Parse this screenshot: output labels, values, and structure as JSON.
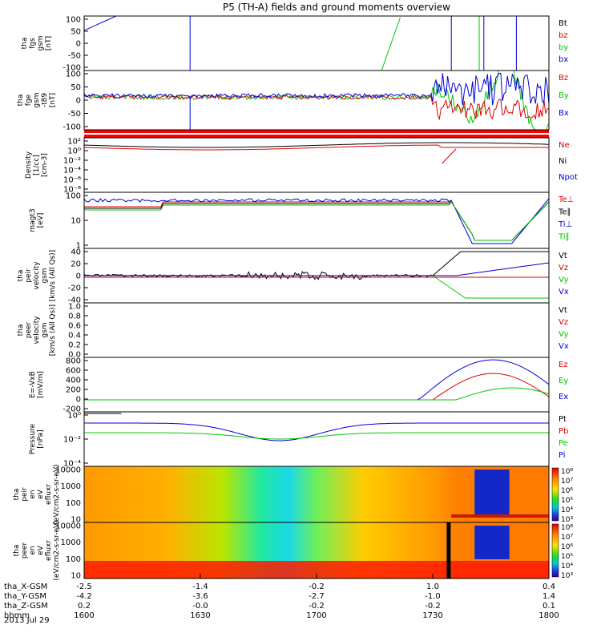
{
  "title": "P5 (TH-A) fields and ground moments overview",
  "date_label": "2013 Jul 29",
  "hhmm_label": "hhmm",
  "colors": {
    "black": "#000000",
    "red": "#e00000",
    "green": "#00c800",
    "blue": "#0000dc"
  },
  "chart_data": [
    {
      "type": "line",
      "ylabel": [
        "tha",
        "fgs",
        "gsm",
        "[nT]"
      ],
      "yticks": [
        "100",
        "50",
        "0",
        "-50",
        "-100"
      ],
      "ylim": [
        -100,
        100
      ],
      "legend": [
        {
          "name": "Bt",
          "color": "#000000"
        },
        {
          "name": "bz",
          "color": "#e00000"
        },
        {
          "name": "by",
          "color": "#00c800"
        },
        {
          "name": "bx",
          "color": "#0000dc"
        }
      ]
    },
    {
      "type": "line",
      "ylabel": [
        "tha",
        "fge",
        "gsm",
        "-t89",
        "[nT]"
      ],
      "yticks": [
        "100",
        "50",
        "0",
        "-50",
        "-100"
      ],
      "ylim": [
        -120,
        120
      ],
      "legend": [
        {
          "name": "Bz",
          "color": "#e00000"
        },
        {
          "name": "By",
          "color": "#00c800"
        },
        {
          "name": "Bx",
          "color": "#0000dc"
        }
      ]
    },
    {
      "type": "line",
      "ylabel": [
        "Density",
        "[1/cc]",
        "[cm-3]"
      ],
      "yticks": [
        "10²",
        "10⁰",
        "10⁻²",
        "10⁻⁴",
        "10⁻⁶",
        "10⁻⁸"
      ],
      "scale": "log",
      "legend": [
        {
          "name": "Ne",
          "color": "#e00000"
        },
        {
          "name": "Ni",
          "color": "#000000"
        },
        {
          "name": "Npot",
          "color": "#0000dc"
        }
      ]
    },
    {
      "type": "line",
      "ylabel": [
        "magt3",
        "[eV]"
      ],
      "yticks": [
        "100",
        "10",
        "1"
      ],
      "scale": "log",
      "legend": [
        {
          "name": "Te⊥",
          "color": "#e00000"
        },
        {
          "name": "Te∥",
          "color": "#000000"
        },
        {
          "name": "Ti⊥",
          "color": "#0000dc"
        },
        {
          "name": "Ti∥",
          "color": "#00c800"
        }
      ]
    },
    {
      "type": "line",
      "ylabel": [
        "tha",
        "peir",
        "velocity",
        "gsm",
        "[km/s (All Qs)]"
      ],
      "yticks": [
        "40",
        "20",
        "0",
        "-20",
        "-40"
      ],
      "ylim": [
        -40,
        40
      ],
      "legend": [
        {
          "name": "Vt",
          "color": "#000000"
        },
        {
          "name": "Vz",
          "color": "#e00000"
        },
        {
          "name": "Vy",
          "color": "#00c800"
        },
        {
          "name": "Vx",
          "color": "#0000dc"
        }
      ]
    },
    {
      "type": "line",
      "ylabel": [
        "tha",
        "peer",
        "velocity",
        "gsm",
        "[km/s (All Qs)]"
      ],
      "yticks": [
        "1.0",
        "0.8",
        "0.6",
        "0.4",
        "0.2",
        "0.0"
      ],
      "ylim": [
        0,
        1
      ],
      "legend": [
        {
          "name": "Vt",
          "color": "#000000"
        },
        {
          "name": "Vz",
          "color": "#e00000"
        },
        {
          "name": "Vy",
          "color": "#00c800"
        },
        {
          "name": "Vx",
          "color": "#0000dc"
        }
      ]
    },
    {
      "type": "line",
      "ylabel": [
        "E=-VxB",
        "[mV/m]"
      ],
      "yticks": [
        "800",
        "600",
        "400",
        "200",
        "0",
        "-200"
      ],
      "ylim": [
        -200,
        850
      ],
      "legend": [
        {
          "name": "Ez",
          "color": "#e00000"
        },
        {
          "name": "Ey",
          "color": "#00c800"
        },
        {
          "name": "Ex",
          "color": "#0000dc"
        }
      ]
    },
    {
      "type": "line",
      "ylabel": [
        "Pressure",
        "[nPa]"
      ],
      "yticks": [
        "10⁰",
        "10⁻²",
        "10⁻⁴"
      ],
      "scale": "log",
      "legend": [
        {
          "name": "Pt",
          "color": "#000000"
        },
        {
          "name": "Pb",
          "color": "#e00000"
        },
        {
          "name": "Pe",
          "color": "#00c800"
        },
        {
          "name": "Pi",
          "color": "#0000dc"
        }
      ]
    },
    {
      "type": "heatmap",
      "ylabel": [
        "tha",
        "peir",
        "en",
        "eV",
        "efluxr",
        "(eV/cm2-s-sr-eV)"
      ],
      "yticks": [
        "10000",
        "1000",
        "100",
        "10"
      ],
      "scale": "log",
      "colorbar": [
        "10⁸",
        "10⁷",
        "10⁶",
        "10⁵",
        "10⁴",
        "10³"
      ]
    },
    {
      "type": "heatmap",
      "ylabel": [
        "tha",
        "peer",
        "en",
        "eV",
        "efluxr",
        "(eV/cm2-s-sr-eV)"
      ],
      "yticks": [
        "10000",
        "1000",
        "100",
        "10"
      ],
      "scale": "log",
      "colorbar": [
        "10⁸",
        "10⁷",
        "10⁶",
        "10⁵",
        "10⁴",
        "10³"
      ]
    }
  ],
  "x_axis": {
    "rows": [
      {
        "label": "tha_X-GSM",
        "values": [
          "-2.5",
          "-1.4",
          "-0.2",
          "1.0",
          "0.4"
        ]
      },
      {
        "label": "tha_Y-GSM",
        "values": [
          "-4.2",
          "-3.6",
          "-2.7",
          "-1.0",
          "1.4"
        ]
      },
      {
        "label": "tha_Z-GSM",
        "values": [
          "0.2",
          "-0.0",
          "-0.2",
          "-0.2",
          "0.1"
        ]
      },
      {
        "label": "hhmm",
        "values": [
          "1600",
          "1630",
          "1700",
          "1730",
          "1800"
        ]
      }
    ]
  }
}
